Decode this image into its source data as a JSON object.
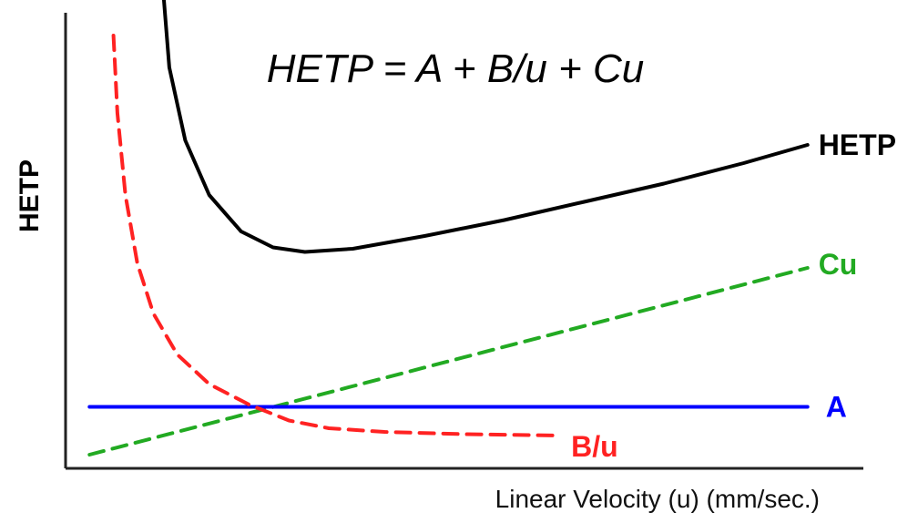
{
  "chart_data": {
    "type": "line",
    "title": "HETP = A + B/u + Cu",
    "xlabel": "Linear Velocity (u) (mm/sec.)",
    "ylabel": "HETP",
    "x_ticks": "none",
    "y_ticks": "none",
    "grid": false,
    "legend": "inline labels at right end of each curve",
    "series": [
      {
        "name": "HETP",
        "label": "HETP",
        "color": "#000000",
        "dash": "solid",
        "points": [
          [
            0.12,
            1.1
          ],
          [
            0.13,
            0.88
          ],
          [
            0.15,
            0.72
          ],
          [
            0.18,
            0.6
          ],
          [
            0.22,
            0.52
          ],
          [
            0.26,
            0.485
          ],
          [
            0.3,
            0.475
          ],
          [
            0.36,
            0.482
          ],
          [
            0.45,
            0.51
          ],
          [
            0.55,
            0.545
          ],
          [
            0.65,
            0.585
          ],
          [
            0.75,
            0.625
          ],
          [
            0.85,
            0.67
          ],
          [
            0.93,
            0.71
          ]
        ]
      },
      {
        "name": "Cu",
        "label": "Cu",
        "color": "#22aa22",
        "dash": "dashed",
        "points": [
          [
            0.03,
            0.03
          ],
          [
            0.93,
            0.44
          ]
        ]
      },
      {
        "name": "A",
        "label": "A",
        "color": "#0000ff",
        "dash": "solid",
        "points": [
          [
            0.03,
            0.135
          ],
          [
            0.93,
            0.135
          ]
        ]
      },
      {
        "name": "B/u",
        "label": "B/u",
        "color": "#ff2222",
        "dash": "dashed",
        "points": [
          [
            0.06,
            0.95
          ],
          [
            0.065,
            0.78
          ],
          [
            0.075,
            0.6
          ],
          [
            0.09,
            0.45
          ],
          [
            0.11,
            0.34
          ],
          [
            0.14,
            0.25
          ],
          [
            0.18,
            0.185
          ],
          [
            0.23,
            0.14
          ],
          [
            0.28,
            0.105
          ],
          [
            0.33,
            0.088
          ],
          [
            0.4,
            0.08
          ],
          [
            0.5,
            0.075
          ],
          [
            0.62,
            0.072
          ]
        ]
      }
    ]
  }
}
